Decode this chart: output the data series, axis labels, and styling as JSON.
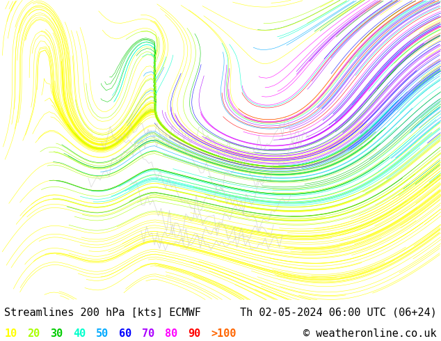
{
  "title_left": "Streamlines 200 hPa [kts] ECMWF",
  "title_right": "Th 02-05-2024 06:00 UTC (06+24)",
  "copyright": "© weatheronline.co.uk",
  "colorbar_labels": [
    "10",
    "20",
    "30",
    "40",
    "50",
    "60",
    "70",
    "80",
    "90",
    ">100"
  ],
  "colorbar_colors": [
    "#ffff00",
    "#aaff00",
    "#00cc00",
    "#00ffcc",
    "#00aaff",
    "#0000ff",
    "#aa00ff",
    "#ff00ff",
    "#ff0000",
    "#ff6600"
  ],
  "bg_color": "#ffffff",
  "map_bg": "#ffffff",
  "title_fontsize": 11,
  "label_fontsize": 11,
  "fig_width": 6.34,
  "fig_height": 4.9,
  "dpi": 100
}
